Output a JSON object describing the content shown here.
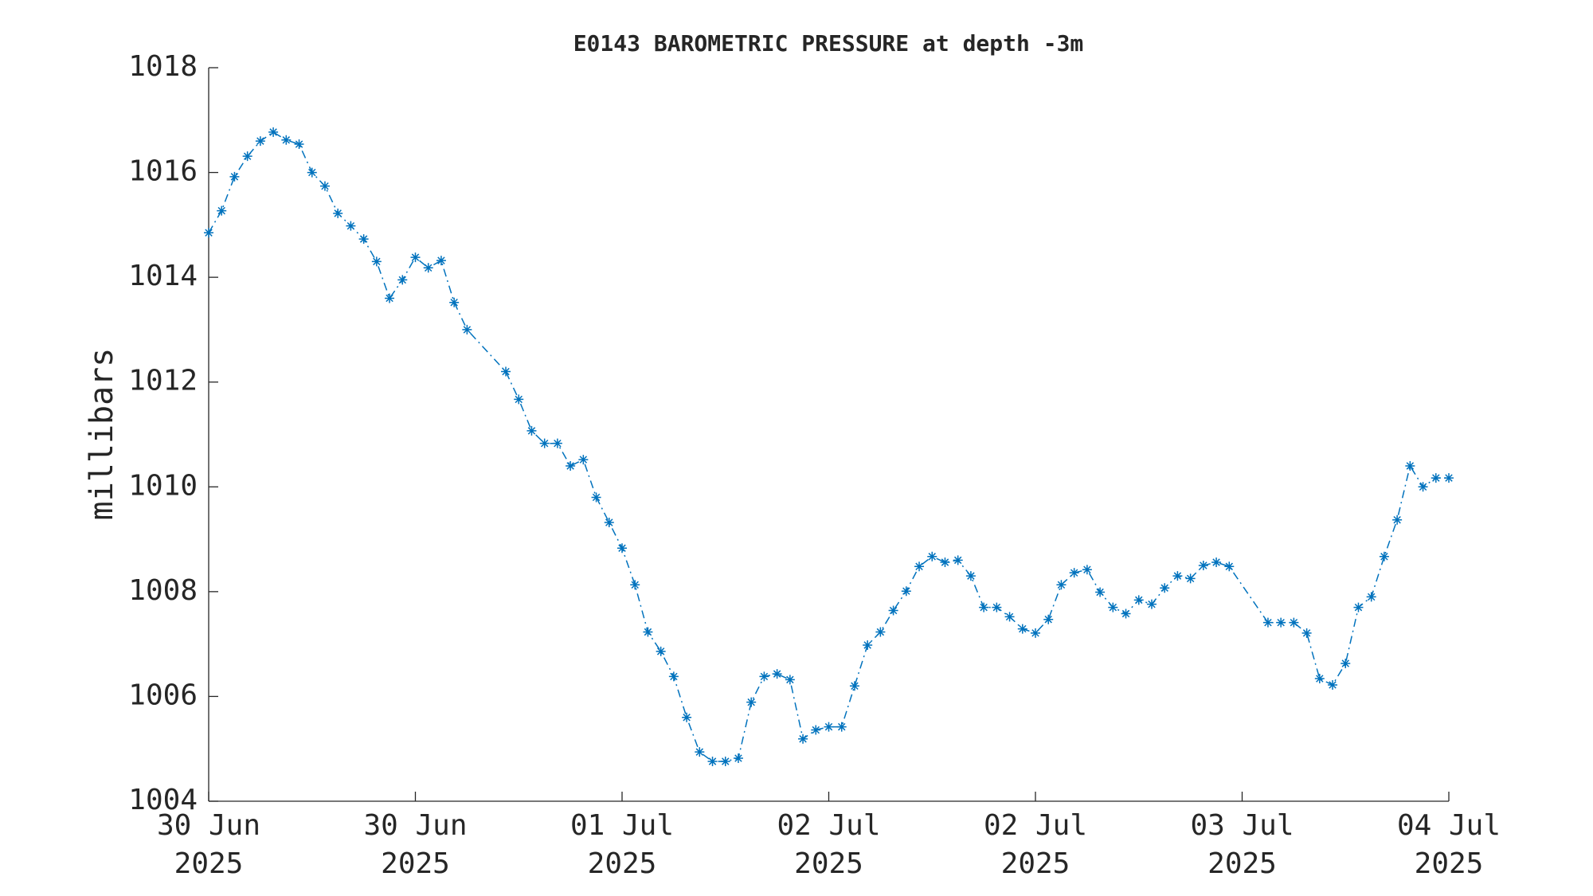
{
  "chart_data": {
    "type": "line",
    "title": "E0143 BAROMETRIC PRESSURE at depth -3m",
    "ylabel": "millibars",
    "x": [
      0,
      1,
      2,
      3,
      4,
      5,
      6,
      7,
      8,
      9,
      10,
      11,
      12,
      13,
      14,
      15,
      16,
      17,
      18,
      19,
      20,
      23,
      24,
      25,
      26,
      27,
      28,
      29,
      30,
      31,
      32,
      33,
      34,
      35,
      36,
      37,
      38,
      39,
      40,
      41,
      42,
      43,
      44,
      45,
      46,
      47,
      48,
      49,
      50,
      51,
      52,
      53,
      54,
      55,
      56,
      57,
      58,
      59,
      60,
      61,
      62,
      63,
      64,
      65,
      66,
      67,
      68,
      69,
      70,
      71,
      72,
      73,
      74,
      75,
      76,
      77,
      78,
      79,
      82,
      83,
      84,
      85,
      86,
      87,
      88,
      89,
      90,
      91,
      92,
      93,
      94,
      95,
      96
    ],
    "series": [
      {
        "name": "barometric pressure",
        "color": "#0072bd",
        "values": [
          1014.85,
          1015.27,
          1015.92,
          1016.31,
          1016.6,
          1016.77,
          1016.62,
          1016.54,
          1016.0,
          1015.74,
          1015.22,
          1014.98,
          1014.73,
          1014.3,
          1013.6,
          1013.95,
          1014.38,
          1014.18,
          1014.32,
          1013.52,
          1013.0,
          1012.2,
          1011.67,
          1011.07,
          1010.83,
          1010.83,
          1010.4,
          1010.52,
          1009.8,
          1009.32,
          1008.83,
          1008.13,
          1007.23,
          1006.86,
          1006.38,
          1005.6,
          1004.94,
          1004.76,
          1004.76,
          1004.82,
          1005.89,
          1006.38,
          1006.43,
          1006.32,
          1005.19,
          1005.36,
          1005.42,
          1005.42,
          1006.2,
          1006.98,
          1007.23,
          1007.64,
          1008.01,
          1008.48,
          1008.67,
          1008.56,
          1008.6,
          1008.3,
          1007.7,
          1007.7,
          1007.52,
          1007.29,
          1007.21,
          1007.47,
          1008.13,
          1008.36,
          1008.42,
          1007.99,
          1007.7,
          1007.58,
          1007.84,
          1007.76,
          1008.07,
          1008.3,
          1008.25,
          1008.5,
          1008.56,
          1008.48,
          1007.41,
          1007.41,
          1007.41,
          1007.21,
          1006.34,
          1006.22,
          1006.63,
          1007.7,
          1007.9,
          1008.67,
          1009.37,
          1010.4,
          1010.0,
          1010.17,
          1010.17
        ]
      }
    ],
    "xlim": [
      0,
      96
    ],
    "xticks": [
      {
        "value": 0,
        "label": [
          "30 Jun",
          "2025"
        ]
      },
      {
        "value": 16,
        "label": [
          "30 Jun",
          "2025"
        ]
      },
      {
        "value": 32,
        "label": [
          "01 Jul",
          "2025"
        ]
      },
      {
        "value": 48,
        "label": [
          "02 Jul",
          "2025"
        ]
      },
      {
        "value": 64,
        "label": [
          "02 Jul",
          "2025"
        ]
      },
      {
        "value": 80,
        "label": [
          "03 Jul",
          "2025"
        ]
      },
      {
        "value": 96,
        "label": [
          "04 Jul",
          "2025"
        ]
      }
    ],
    "ylim": [
      1004,
      1018
    ],
    "yticks": [
      1004,
      1006,
      1008,
      1010,
      1012,
      1014,
      1016,
      1018
    ],
    "grid": false
  }
}
